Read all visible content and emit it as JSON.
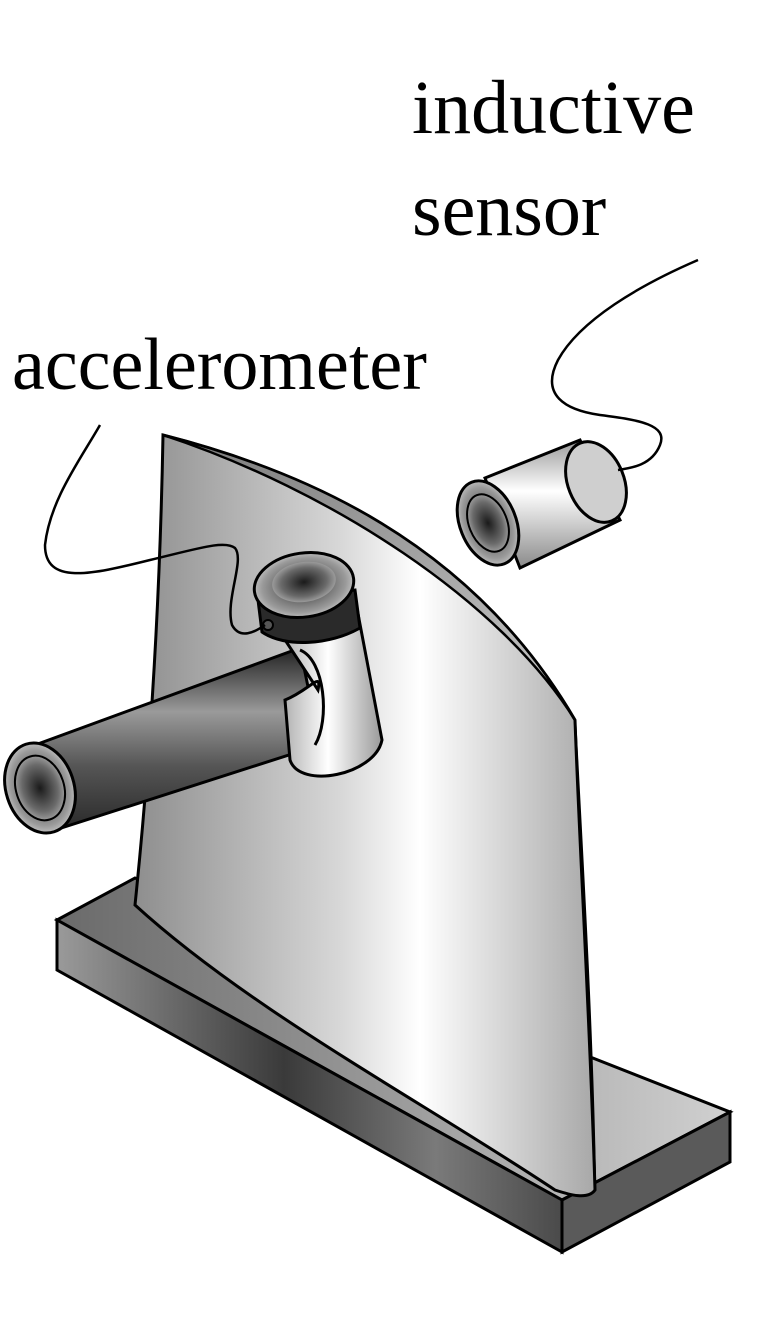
{
  "labels": {
    "inductive_sensor_line1": "inductive",
    "inductive_sensor_line2": "sensor",
    "accelerometer": "accelerometer"
  },
  "colors": {
    "outline": "#000000",
    "blade_light": "#f2f2f2",
    "blade_mid": "#bdbdbd",
    "blade_dark": "#8a8a8a",
    "metal_dark": "#2a2a2a",
    "background": "#ffffff"
  },
  "components": [
    "base-plate",
    "blade",
    "shaft",
    "accelerometer-sensor",
    "inductive-sensor",
    "accelerometer-cable",
    "inductive-sensor-cable"
  ]
}
